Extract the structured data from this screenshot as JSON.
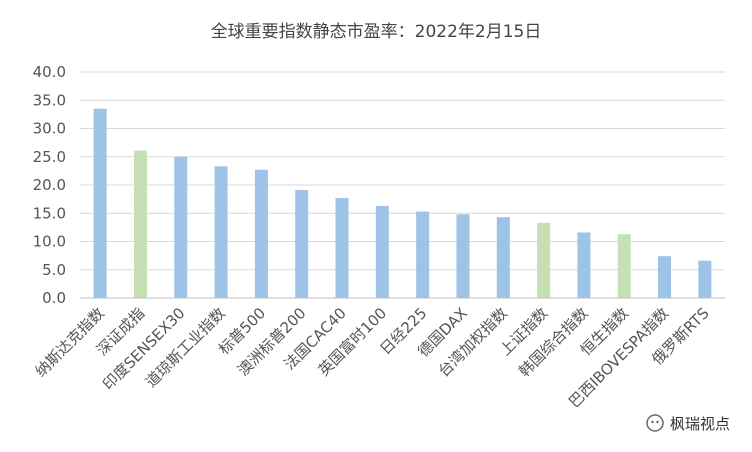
{
  "chart_data": {
    "type": "bar",
    "title": "全球重要指数静态市盈率：2022年2月15日",
    "categories": [
      "纳斯达克指数",
      "深证成指",
      "印度SENSEX30",
      "道琼斯工业指数",
      "标普500",
      "澳洲标普200",
      "法国CAC40",
      "英国富时100",
      "日经225",
      "德国DAX",
      "台湾加权指数",
      "上证指数",
      "韩国综合指数",
      "恒生指数",
      "巴西IBOVESPA指数",
      "俄罗斯RTS"
    ],
    "values": [
      33.5,
      26.1,
      25.0,
      23.3,
      22.7,
      19.1,
      17.7,
      16.3,
      15.3,
      14.8,
      14.3,
      13.3,
      11.6,
      11.3,
      7.4,
      6.6
    ],
    "highlight": [
      false,
      true,
      false,
      false,
      false,
      false,
      false,
      false,
      false,
      false,
      false,
      true,
      false,
      true,
      false,
      false
    ],
    "ylim": [
      0,
      40
    ],
    "yticks": [
      "0.0",
      "5.0",
      "10.0",
      "15.0",
      "20.0",
      "25.0",
      "30.0",
      "35.0",
      "40.0"
    ],
    "grid": true,
    "colors": {
      "default": "#9dc3e6",
      "highlight": "#c5e0b4",
      "grid": "#d9d9d9"
    }
  },
  "watermark": {
    "text": "枫瑞视点",
    "icon": "wechat-icon"
  }
}
